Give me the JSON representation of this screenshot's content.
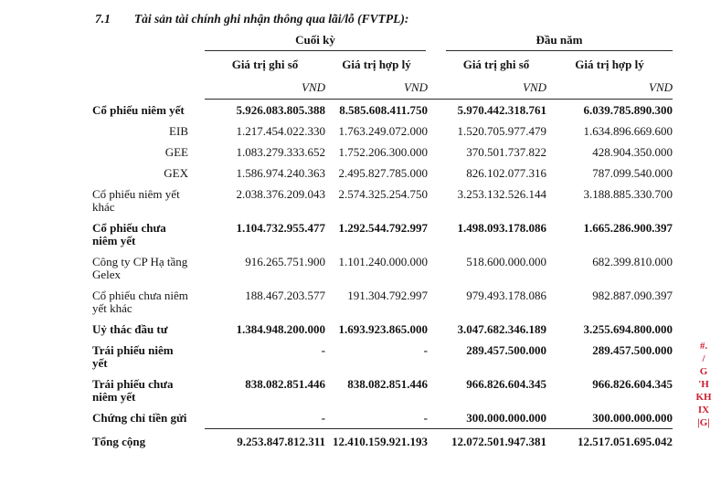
{
  "title": {
    "number": "7.1",
    "text": "Tài sản tài chính ghi nhận thông qua lãi/lỗ (FVTPL):"
  },
  "table": {
    "group_headers": [
      "Cuối kỳ",
      "Đầu năm"
    ],
    "sub_headers": [
      "Giá trị ghi sổ",
      "Giá trị hợp lý",
      "Giá trị ghi sổ",
      "Giá trị hợp lý"
    ],
    "currency_labels": [
      "VND",
      "VND",
      "VND",
      "VND"
    ],
    "rows": [
      {
        "label": "Cổ phiếu niêm yết",
        "values": [
          "5.926.083.805.388",
          "8.585.608.411.750",
          "5.970.442.318.761",
          "6.039.785.890.300"
        ]
      },
      {
        "label": "EIB",
        "values": [
          "1.217.454.022.330",
          "1.763.249.072.000",
          "1.520.705.977.479",
          "1.634.896.669.600"
        ]
      },
      {
        "label": "GEE",
        "values": [
          "1.083.279.333.652",
          "1.752.206.300.000",
          "370.501.737.822",
          "428.904.350.000"
        ]
      },
      {
        "label": "GEX",
        "values": [
          "1.586.974.240.363",
          "2.495.827.785.000",
          "826.102.077.316",
          "787.099.540.000"
        ]
      },
      {
        "label": "Cổ phiếu niêm yết khác",
        "values": [
          "2.038.376.209.043",
          "2.574.325.254.750",
          "3.253.132.526.144",
          "3.188.885.330.700"
        ]
      },
      {
        "label": "Cổ phiếu chưa niêm yết",
        "values": [
          "1.104.732.955.477",
          "1.292.544.792.997",
          "1.498.093.178.086",
          "1.665.286.900.397"
        ]
      },
      {
        "label": "Công ty CP Hạ tầng Gelex",
        "values": [
          "916.265.751.900",
          "1.101.240.000.000",
          "518.600.000.000",
          "682.399.810.000"
        ]
      },
      {
        "label": "Cổ phiếu chưa niêm yết khác",
        "values": [
          "188.467.203.577",
          "191.304.792.997",
          "979.493.178.086",
          "982.887.090.397"
        ]
      },
      {
        "label": "Uỷ thác đầu tư",
        "values": [
          "1.384.948.200.000",
          "1.693.923.865.000",
          "3.047.682.346.189",
          "3.255.694.800.000"
        ]
      },
      {
        "label": "Trái phiếu niêm yết",
        "values": [
          "-",
          "-",
          "289.457.500.000",
          "289.457.500.000"
        ]
      },
      {
        "label": "Trái phiếu chưa niêm yết",
        "values": [
          "838.082.851.446",
          "838.082.851.446",
          "966.826.604.345",
          "966.826.604.345"
        ]
      },
      {
        "label": "Chứng chỉ tiền gửi",
        "values": [
          "-",
          "-",
          "300.000.000.000",
          "300.000.000.000"
        ]
      },
      {
        "label": "Tổng cộng",
        "values": [
          "9.253.847.812.311",
          "12.410.159.921.193",
          "12.072.501.947.381",
          "12.517.051.695.042"
        ]
      }
    ]
  },
  "margin_annotations": {
    "color": "#cc2030",
    "marks": [
      "#.",
      "/",
      "G",
      "'H",
      "KH",
      "IX",
      "|G|"
    ]
  }
}
